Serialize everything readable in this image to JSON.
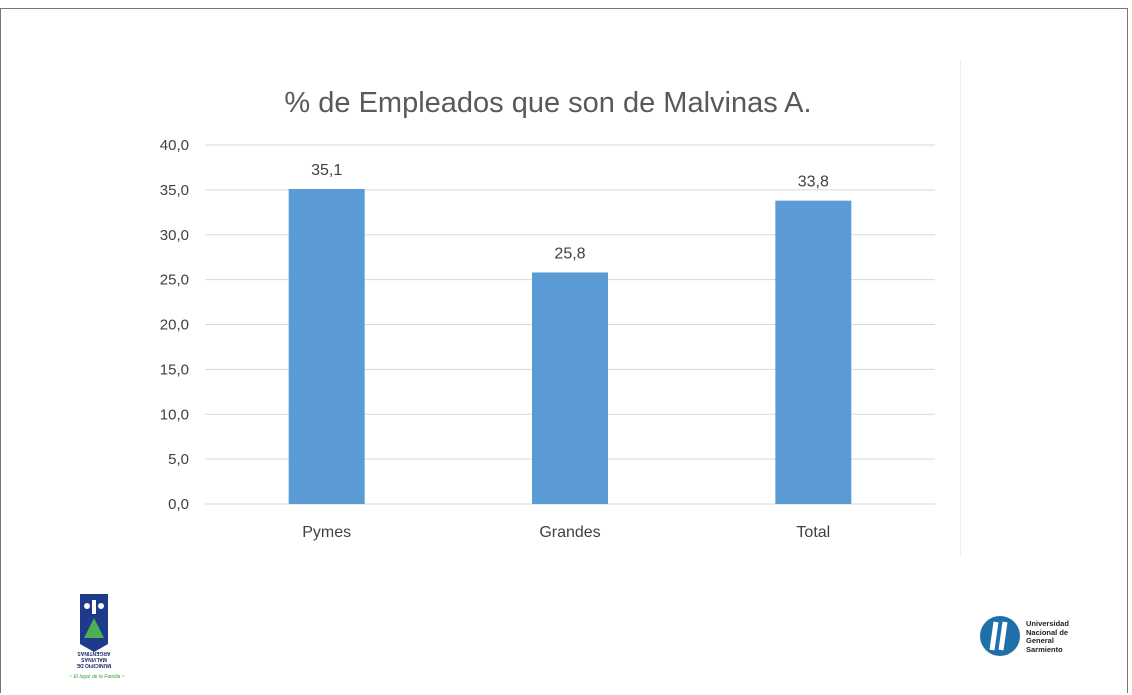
{
  "chart_data": {
    "type": "bar",
    "title": "% de Empleados que son de Malvinas A.",
    "categories": [
      "Pymes",
      "Grandes",
      "Total"
    ],
    "values": [
      35.1,
      25.8,
      33.8
    ],
    "value_labels": [
      "35,1",
      "25,8",
      "33,8"
    ],
    "ylim": [
      0,
      40
    ],
    "y_ticks": [
      "0,0",
      "5,0",
      "10,0",
      "15,0",
      "20,0",
      "25,0",
      "30,0",
      "35,0",
      "40,0"
    ],
    "xlabel": "",
    "ylabel": "",
    "grid": true,
    "legend": "none",
    "bar_color": "#5b9bd5",
    "grid_color": "#d9d9d9"
  },
  "logos": {
    "left": {
      "label_lines": [
        "MUNICIPIO DE",
        "MALVINAS",
        "ARGENTINAS"
      ],
      "motto": "~ El lugar de la Familia ~"
    },
    "right": {
      "label_lines": [
        "Universidad",
        "Nacional de",
        "General",
        "Sarmiento"
      ]
    }
  }
}
